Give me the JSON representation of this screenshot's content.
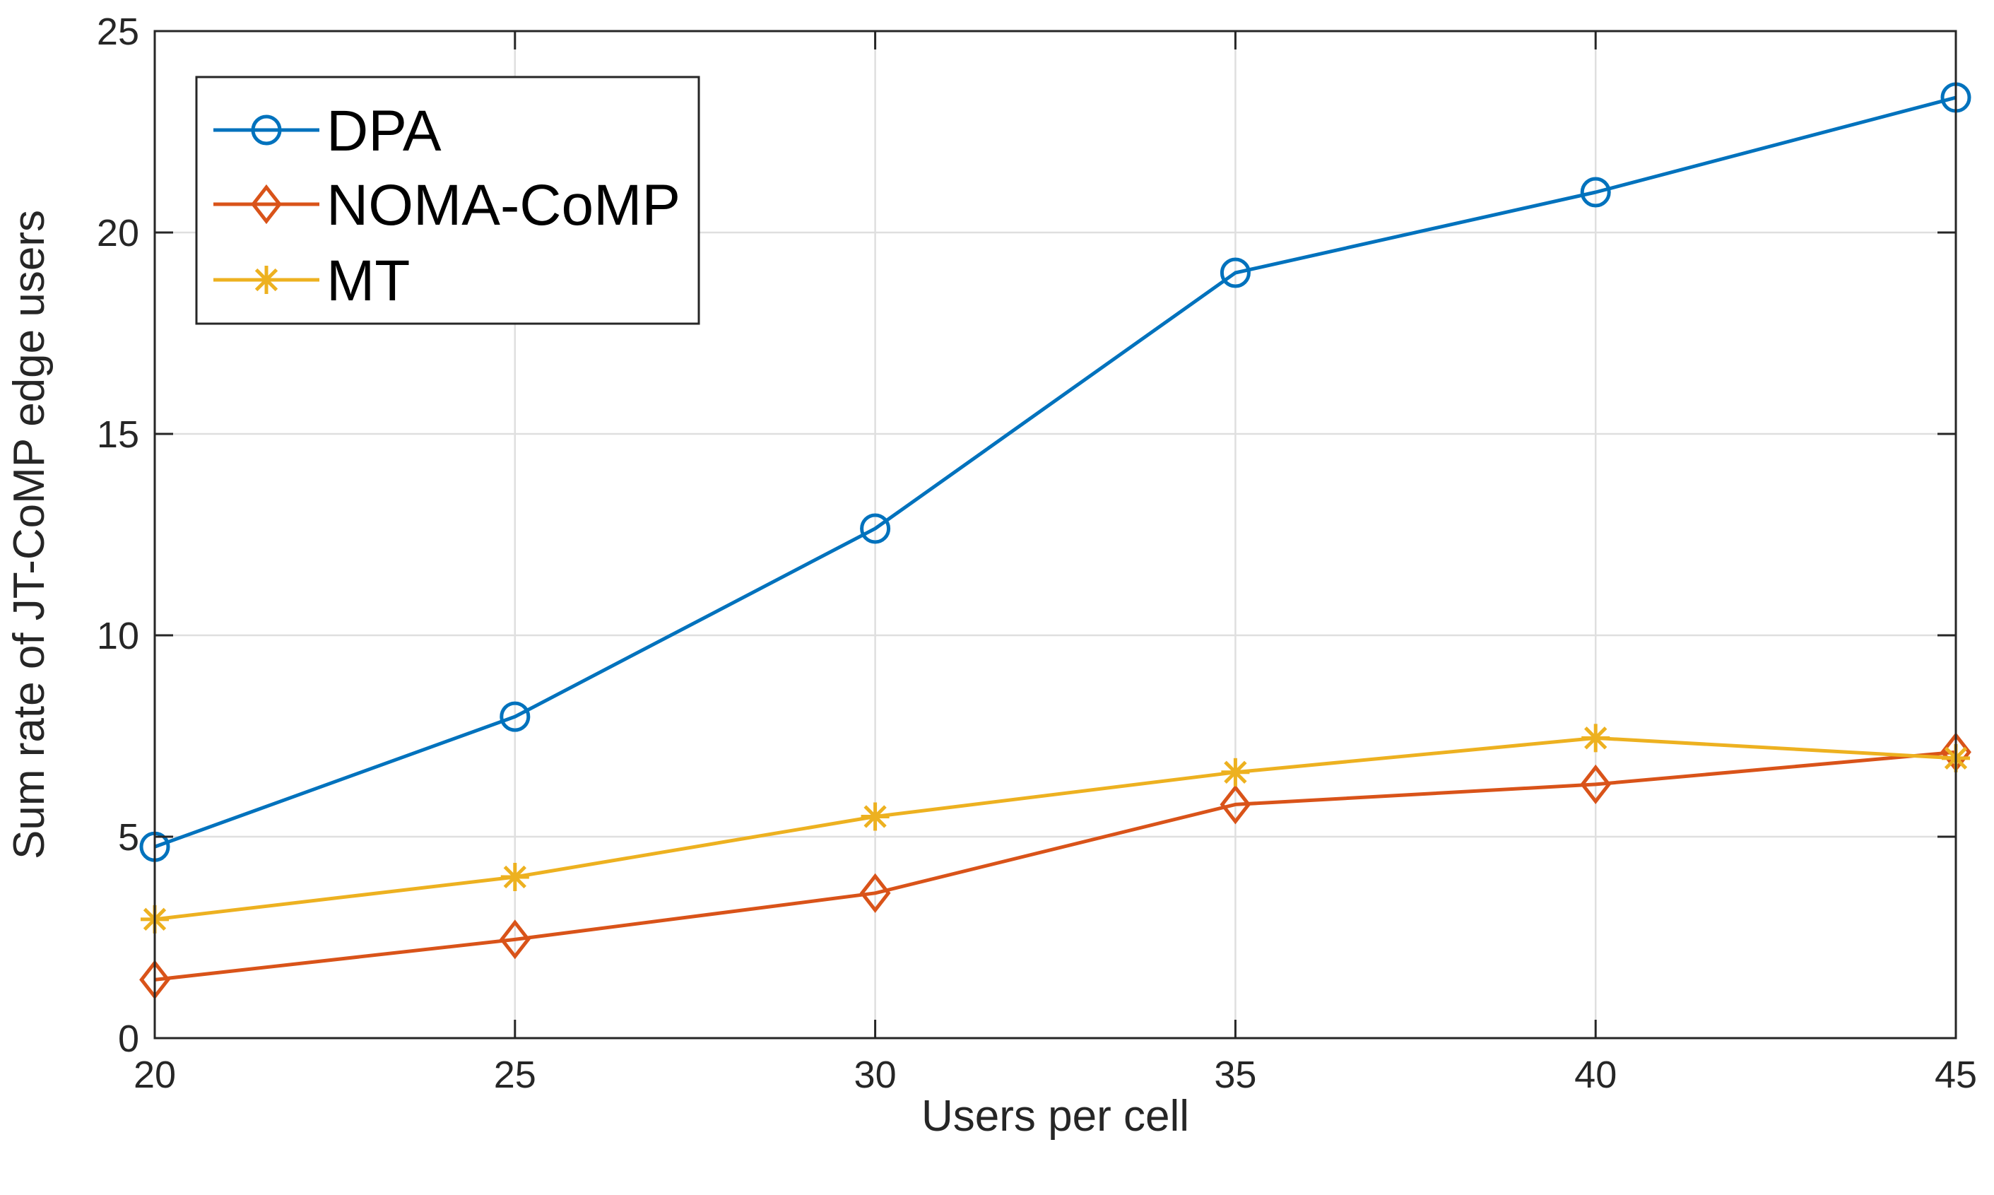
{
  "chart_data": {
    "type": "line",
    "xlabel": "Users per cell",
    "ylabel": "Sum rate of  JT-CoMP edge users",
    "xlim": [
      20,
      45
    ],
    "ylim": [
      0,
      25
    ],
    "xticks": [
      20,
      25,
      30,
      35,
      40,
      45
    ],
    "yticks": [
      0,
      5,
      10,
      15,
      20,
      25
    ],
    "grid": true,
    "legend_position": "top-left",
    "x": [
      20,
      25,
      30,
      35,
      40,
      45
    ],
    "series": [
      {
        "name": "DPA",
        "color": "#0072BD",
        "marker": "circle",
        "values": [
          4.75,
          7.98,
          12.65,
          19.0,
          21.0,
          23.35
        ]
      },
      {
        "name": "NOMA-CoMP",
        "color": "#D95319",
        "marker": "diamond",
        "values": [
          1.45,
          2.45,
          3.6,
          5.8,
          6.3,
          7.1
        ]
      },
      {
        "name": "MT",
        "color": "#EDB120",
        "marker": "asterisk",
        "values": [
          2.95,
          4.0,
          5.5,
          6.6,
          7.45,
          6.95
        ]
      }
    ]
  }
}
